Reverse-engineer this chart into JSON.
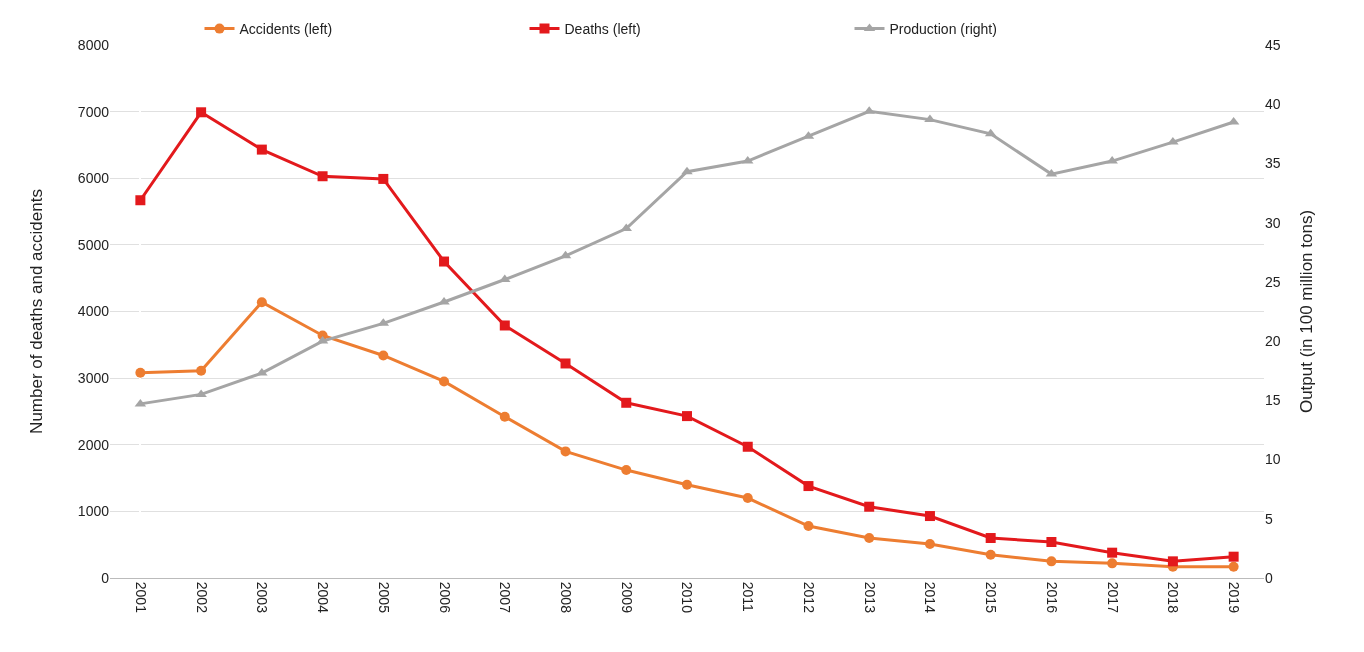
{
  "chart_data": {
    "type": "line",
    "xlabel": null,
    "ylabel": "Number of deaths and accidents",
    "y2label": "Output (in 100 million tons)",
    "categories": [
      "2001",
      "2002",
      "2003",
      "2004",
      "2005",
      "2006",
      "2007",
      "2008",
      "2009",
      "2010",
      "2011",
      "2012",
      "2013",
      "2014",
      "2015",
      "2016",
      "2017",
      "2018",
      "2019"
    ],
    "series": [
      {
        "name": "Accidents (left)",
        "color": "#ed7d31",
        "marker": "circle",
        "values": [
          3080,
          3110,
          4140,
          3640,
          3340,
          2950,
          2420,
          1900,
          1620,
          1400,
          1200,
          780,
          600,
          510,
          350,
          250,
          220,
          170,
          170
        ]
      },
      {
        "name": "Deaths (left)",
        "color": "#e3191c",
        "marker": "square",
        "values": [
          5670,
          6990,
          6430,
          6030,
          5990,
          4750,
          3790,
          3220,
          2630,
          2430,
          1970,
          1380,
          1070,
          930,
          600,
          540,
          380,
          250,
          320
        ]
      },
      {
        "name": "Production (right)",
        "color": "#a5a5a5",
        "marker": "triangle",
        "axis": "y2",
        "values": [
          14.7,
          15.5,
          17.3,
          20.0,
          21.5,
          23.3,
          25.2,
          27.2,
          29.5,
          34.3,
          35.2,
          37.3,
          39.4,
          38.7,
          37.5,
          34.1,
          35.2,
          36.8,
          38.5
        ]
      }
    ],
    "ylim": [
      0,
      8000
    ],
    "yticks": [
      0,
      1000,
      2000,
      3000,
      4000,
      5000,
      6000,
      7000,
      8000
    ],
    "y2lim": [
      0,
      45
    ],
    "y2ticks": [
      0,
      5,
      10,
      15,
      20,
      25,
      30,
      35,
      40,
      45
    ],
    "grid": "y",
    "legend": "top",
    "line_style": "solid"
  }
}
